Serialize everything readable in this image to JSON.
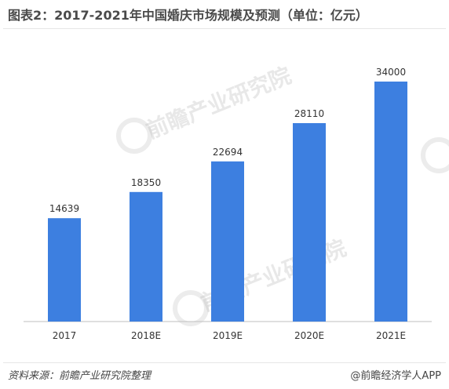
{
  "title": "图表2：2017-2021年中国婚庆市场规模及预测（单位：亿元）",
  "source": "资料来源：前瞻产业研究院整理",
  "credit": "@前瞻经济学人APP",
  "watermark_text": "前瞻产业研究院",
  "colors": {
    "bar": "#3d7fe0",
    "axis": "#bfbfbf",
    "text": "#333333"
  },
  "chart_data": {
    "type": "bar",
    "title": "图表2：2017-2021年中国婚庆市场规模及预测（单位：亿元）",
    "xlabel": "",
    "ylabel": "",
    "categories": [
      "2017",
      "2018E",
      "2019E",
      "2020E",
      "2021E"
    ],
    "values": [
      14639,
      18350,
      22694,
      28110,
      34000
    ],
    "data_labels": [
      "14639",
      "18350",
      "22694",
      "28110",
      "34000"
    ],
    "ylim": [
      0,
      40000
    ],
    "grid": false,
    "legend": "none"
  }
}
